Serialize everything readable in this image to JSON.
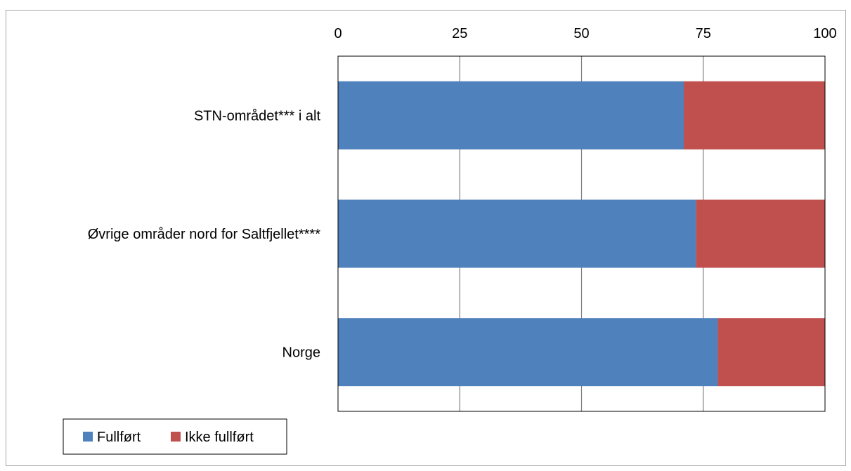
{
  "chart_data": {
    "type": "bar",
    "orientation": "horizontal",
    "stacked": true,
    "categories": [
      "STN-området*** i alt",
      "Øvrige områder nord for Saltfjellet****",
      "Norge"
    ],
    "series": [
      {
        "name": "Fullført",
        "values": [
          71,
          73.5,
          78
        ],
        "color": "#4f81bd"
      },
      {
        "name": "Ikke fullført",
        "values": [
          29,
          26.5,
          22
        ],
        "color": "#c0504d"
      }
    ],
    "xlim": [
      0,
      100
    ],
    "xticks": [
      "0",
      "25",
      "50",
      "75",
      "100"
    ],
    "grid": true,
    "legend_position": "bottom-left"
  }
}
